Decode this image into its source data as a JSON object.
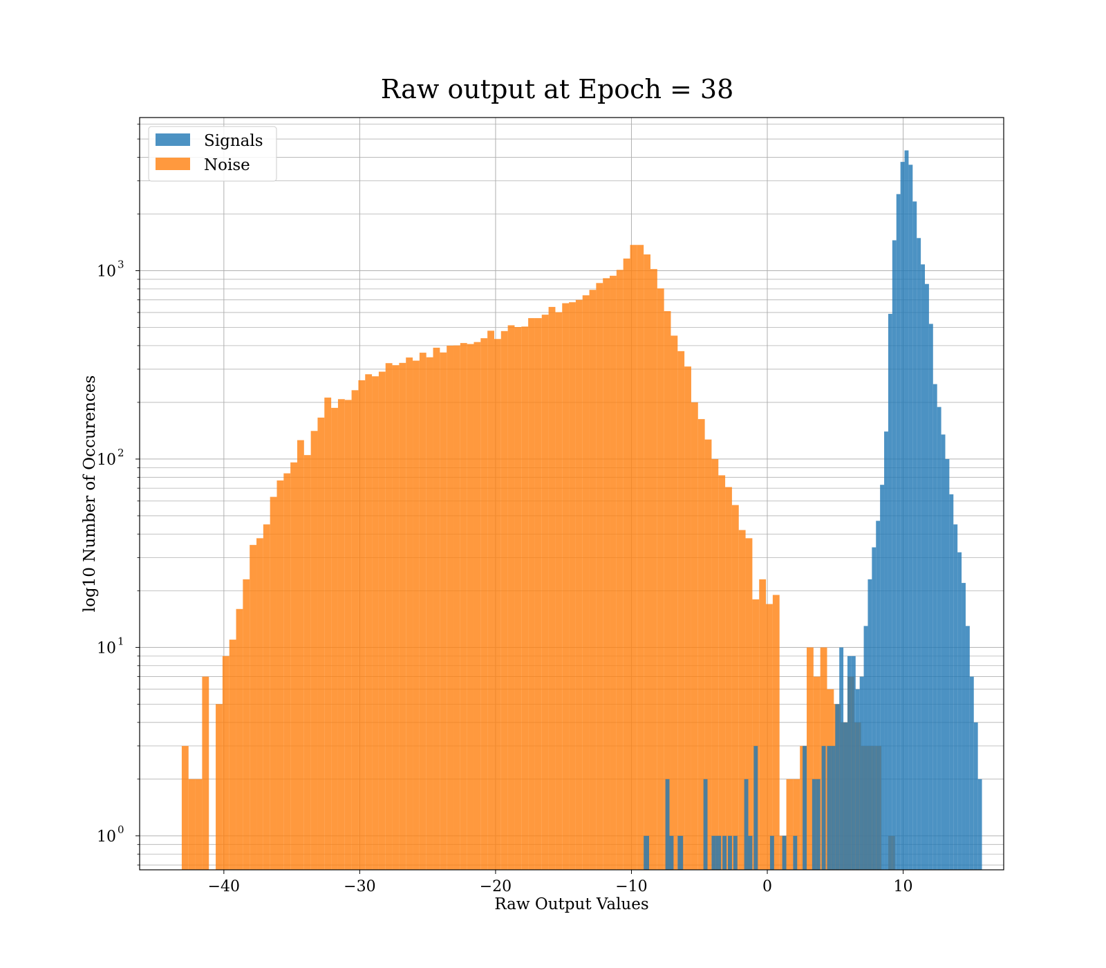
{
  "chart_data": {
    "type": "bar",
    "title": "Raw output at Epoch = 38",
    "xlabel": "Raw Output Values",
    "ylabel": "log10 Number of Occurences",
    "xlim": [
      -46.2,
      17.4
    ],
    "ylim": [
      0.66,
      6500
    ],
    "yscale": "log",
    "grid": true,
    "legend_position": "top-left",
    "x_ticks": [
      {
        "value": -40,
        "label": "−40"
      },
      {
        "value": -30,
        "label": "−30"
      },
      {
        "value": -20,
        "label": "−20"
      },
      {
        "value": -10,
        "label": "−10"
      },
      {
        "value": 0,
        "label": "0"
      },
      {
        "value": 10,
        "label": "10"
      }
    ],
    "y_ticks": [
      {
        "value": 1,
        "base": "10",
        "exp": "0"
      },
      {
        "value": 10,
        "base": "10",
        "exp": "1"
      },
      {
        "value": 100,
        "base": "10",
        "exp": "2"
      },
      {
        "value": 1000,
        "base": "10",
        "exp": "3"
      }
    ],
    "series": [
      {
        "name": "Noise",
        "color": "#ff7f0e",
        "bins": [
          [
            -43.1,
            -42.6,
            3
          ],
          [
            -42.6,
            -42.1,
            2
          ],
          [
            -42.1,
            -41.6,
            2
          ],
          [
            -41.6,
            -41.1,
            7
          ],
          [
            -41.1,
            -40.6,
            0
          ],
          [
            -40.6,
            -40.1,
            5
          ],
          [
            -40.1,
            -39.6,
            9
          ],
          [
            -39.6,
            -39.1,
            11
          ],
          [
            -39.1,
            -38.6,
            16
          ],
          [
            -38.6,
            -38.1,
            23
          ],
          [
            -38.1,
            -37.6,
            35
          ],
          [
            -37.6,
            -37.1,
            38
          ],
          [
            -37.1,
            -36.6,
            45
          ],
          [
            -36.6,
            -36.1,
            63
          ],
          [
            -36.1,
            -35.6,
            77
          ],
          [
            -35.6,
            -35.1,
            84
          ],
          [
            -35.1,
            -34.6,
            96
          ],
          [
            -34.6,
            -34.1,
            126
          ],
          [
            -34.1,
            -33.6,
            105
          ],
          [
            -33.6,
            -33.1,
            141
          ],
          [
            -33.1,
            -32.6,
            166
          ],
          [
            -32.6,
            -32.1,
            212
          ],
          [
            -32.1,
            -31.6,
            187
          ],
          [
            -31.6,
            -31.1,
            208
          ],
          [
            -31.1,
            -30.6,
            206
          ],
          [
            -30.6,
            -30.1,
            232
          ],
          [
            -30.1,
            -29.6,
            262
          ],
          [
            -29.6,
            -29.1,
            282
          ],
          [
            -29.1,
            -28.6,
            275
          ],
          [
            -28.6,
            -28.1,
            291
          ],
          [
            -28.1,
            -27.6,
            323
          ],
          [
            -27.6,
            -27.1,
            315
          ],
          [
            -27.1,
            -26.6,
            324
          ],
          [
            -26.6,
            -26.1,
            346
          ],
          [
            -26.1,
            -25.6,
            333
          ],
          [
            -25.6,
            -25.1,
            367
          ],
          [
            -25.1,
            -24.6,
            347
          ],
          [
            -24.6,
            -24.1,
            390
          ],
          [
            -24.1,
            -23.6,
            368
          ],
          [
            -23.6,
            -23.1,
            400
          ],
          [
            -23.1,
            -22.6,
            401
          ],
          [
            -22.6,
            -22.1,
            413
          ],
          [
            -22.1,
            -21.6,
            408
          ],
          [
            -21.6,
            -21.1,
            418
          ],
          [
            -21.1,
            -20.6,
            438
          ],
          [
            -20.6,
            -20.1,
            480
          ],
          [
            -20.1,
            -19.6,
            434
          ],
          [
            -19.6,
            -19.1,
            478
          ],
          [
            -19.1,
            -18.6,
            513
          ],
          [
            -18.6,
            -18.1,
            502
          ],
          [
            -18.1,
            -17.6,
            505
          ],
          [
            -17.6,
            -17.1,
            560
          ],
          [
            -17.1,
            -16.6,
            560
          ],
          [
            -16.6,
            -16.1,
            584
          ],
          [
            -16.1,
            -15.6,
            642
          ],
          [
            -15.6,
            -15.1,
            602
          ],
          [
            -15.1,
            -14.6,
            672
          ],
          [
            -14.6,
            -14.1,
            680
          ],
          [
            -14.1,
            -13.6,
            700
          ],
          [
            -13.6,
            -13.1,
            740
          ],
          [
            -13.1,
            -12.6,
            791
          ],
          [
            -12.6,
            -12.1,
            860
          ],
          [
            -12.1,
            -11.6,
            912
          ],
          [
            -11.6,
            -11.1,
            940
          ],
          [
            -11.1,
            -10.6,
            1010
          ],
          [
            -10.6,
            -10.1,
            1160
          ],
          [
            -10.1,
            -9.6,
            1370
          ],
          [
            -9.6,
            -9.1,
            1370
          ],
          [
            -9.1,
            -8.6,
            1220
          ],
          [
            -8.6,
            -8.1,
            1020
          ],
          [
            -8.1,
            -7.6,
            805
          ],
          [
            -7.6,
            -7.1,
            610
          ],
          [
            -7.1,
            -6.6,
            452
          ],
          [
            -6.6,
            -6.1,
            374
          ],
          [
            -6.1,
            -5.6,
            310
          ],
          [
            -5.6,
            -5.1,
            200
          ],
          [
            -5.1,
            -4.6,
            163
          ],
          [
            -4.6,
            -4.1,
            127
          ],
          [
            -4.1,
            -3.6,
            100
          ],
          [
            -3.6,
            -3.1,
            82
          ],
          [
            -3.1,
            -2.6,
            71
          ],
          [
            -2.6,
            -2.1,
            57
          ],
          [
            -2.1,
            -1.6,
            42
          ],
          [
            -1.6,
            -1.1,
            38
          ],
          [
            -1.1,
            -0.6,
            18
          ],
          [
            -0.6,
            -0.1,
            23
          ],
          [
            -0.1,
            0.4,
            17
          ],
          [
            0.4,
            0.9,
            19
          ],
          [
            0.9,
            1.4,
            1
          ],
          [
            1.4,
            1.9,
            2
          ],
          [
            1.9,
            2.4,
            2
          ],
          [
            2.4,
            2.9,
            3
          ],
          [
            2.9,
            3.4,
            10
          ],
          [
            3.4,
            3.9,
            7
          ],
          [
            3.9,
            4.4,
            10
          ],
          [
            4.4,
            4.9,
            6
          ],
          [
            4.9,
            5.4,
            5
          ],
          [
            5.4,
            5.9,
            4
          ],
          [
            5.9,
            6.4,
            7
          ],
          [
            6.4,
            6.9,
            4
          ],
          [
            6.9,
            7.4,
            3
          ],
          [
            7.4,
            7.9,
            3
          ],
          [
            7.9,
            8.4,
            3
          ],
          [
            8.4,
            8.9,
            0
          ],
          [
            8.9,
            9.4,
            1
          ]
        ]
      },
      {
        "name": "Signals",
        "color": "#1f77b4",
        "bins": [
          [
            -9.1,
            -8.7,
            1
          ],
          [
            -7.5,
            -7.2,
            2
          ],
          [
            -7.2,
            -6.9,
            1
          ],
          [
            -6.6,
            -6.2,
            1
          ],
          [
            -4.7,
            -4.4,
            2
          ],
          [
            -4.1,
            -3.8,
            1
          ],
          [
            -3.8,
            -3.4,
            1
          ],
          [
            -3.3,
            -3.0,
            1
          ],
          [
            -2.9,
            -2.6,
            1
          ],
          [
            -2.5,
            -2.2,
            1
          ],
          [
            -1.7,
            -1.4,
            2
          ],
          [
            -1.4,
            -1.1,
            1
          ],
          [
            -1.0,
            -0.7,
            3
          ],
          [
            0.2,
            0.5,
            1
          ],
          [
            1.1,
            1.4,
            1
          ],
          [
            1.9,
            2.2,
            1
          ],
          [
            2.6,
            2.9,
            3
          ],
          [
            3.3,
            3.6,
            2
          ],
          [
            3.6,
            3.9,
            2
          ],
          [
            4.0,
            4.3,
            3
          ],
          [
            4.4,
            4.7,
            3
          ],
          [
            4.7,
            5.0,
            3
          ],
          [
            5.0,
            5.3,
            5
          ],
          [
            5.3,
            5.6,
            10
          ],
          [
            5.6,
            5.9,
            4
          ],
          [
            5.9,
            6.2,
            9
          ],
          [
            6.2,
            6.5,
            9
          ],
          [
            6.5,
            6.8,
            6
          ],
          [
            6.8,
            7.1,
            7
          ],
          [
            7.1,
            7.4,
            13
          ],
          [
            7.4,
            7.7,
            23
          ],
          [
            7.7,
            8.0,
            34
          ],
          [
            8.0,
            8.3,
            47
          ],
          [
            8.3,
            8.6,
            73
          ],
          [
            8.6,
            8.9,
            140
          ],
          [
            8.9,
            9.2,
            590
          ],
          [
            9.2,
            9.5,
            1450
          ],
          [
            9.5,
            9.8,
            2550
          ],
          [
            9.8,
            10.1,
            3780
          ],
          [
            10.1,
            10.4,
            4350
          ],
          [
            10.4,
            10.7,
            3650
          ],
          [
            10.7,
            11.0,
            2330
          ],
          [
            11.0,
            11.3,
            1490
          ],
          [
            11.3,
            11.6,
            1080
          ],
          [
            11.6,
            11.9,
            850
          ],
          [
            11.9,
            12.2,
            522
          ],
          [
            12.2,
            12.5,
            250
          ],
          [
            12.5,
            12.8,
            189
          ],
          [
            12.8,
            13.1,
            135
          ],
          [
            13.1,
            13.4,
            100
          ],
          [
            13.4,
            13.7,
            65
          ],
          [
            13.7,
            14.0,
            45
          ],
          [
            14.0,
            14.3,
            32
          ],
          [
            14.3,
            14.6,
            22
          ],
          [
            14.6,
            14.9,
            13
          ],
          [
            14.9,
            15.2,
            7
          ],
          [
            15.2,
            15.5,
            4
          ],
          [
            15.5,
            15.8,
            2
          ]
        ]
      }
    ]
  }
}
